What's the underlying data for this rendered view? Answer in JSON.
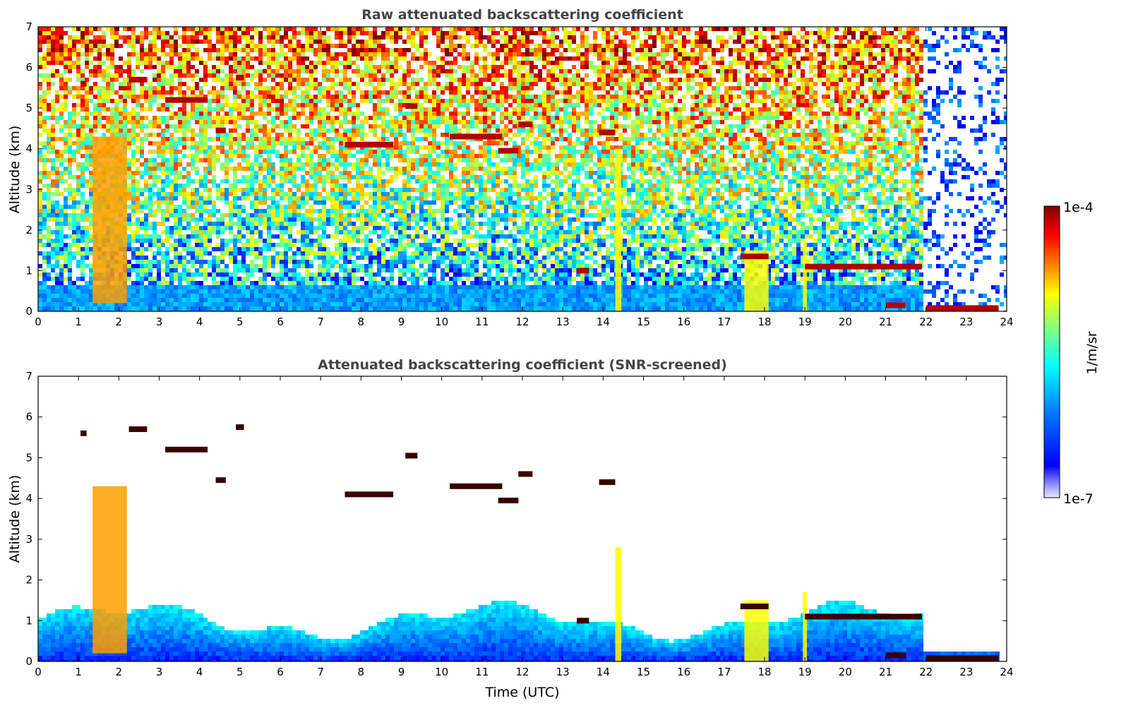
{
  "colors": {
    "jet": [
      "#00007f",
      "#0000ff",
      "#007fff",
      "#00ffff",
      "#7fff7f",
      "#ffff00",
      "#ff7f00",
      "#ff0000",
      "#7f0000"
    ],
    "background": "#ffffff"
  },
  "chart_data": [
    {
      "type": "heatmap",
      "id": "raw",
      "title": "Raw attenuated backscattering coefficient",
      "xlabel": "",
      "ylabel": "Altitude (km)",
      "xlim": [
        0,
        24
      ],
      "ylim": [
        0,
        7
      ],
      "x_ticks": [
        "0",
        "1",
        "2",
        "3",
        "4",
        "5",
        "6",
        "7",
        "8",
        "9",
        "10",
        "11",
        "12",
        "13",
        "14",
        "15",
        "16",
        "17",
        "18",
        "19",
        "20",
        "21",
        "22",
        "23",
        "24"
      ],
      "y_ticks": [
        "0",
        "1",
        "2",
        "3",
        "4",
        "5",
        "6",
        "7"
      ],
      "screened": false,
      "cloud_layers": [
        {
          "t0": 1.05,
          "t1": 1.2,
          "alt": 5.6
        },
        {
          "t0": 2.25,
          "t1": 2.7,
          "alt": 5.7
        },
        {
          "t0": 3.15,
          "t1": 4.2,
          "alt": 5.2
        },
        {
          "t0": 4.4,
          "t1": 4.65,
          "alt": 4.45
        },
        {
          "t0": 4.9,
          "t1": 5.1,
          "alt": 5.75
        },
        {
          "t0": 7.6,
          "t1": 8.8,
          "alt": 4.1
        },
        {
          "t0": 9.1,
          "t1": 9.4,
          "alt": 5.05
        },
        {
          "t0": 10.2,
          "t1": 11.5,
          "alt": 4.3
        },
        {
          "t0": 11.4,
          "t1": 11.9,
          "alt": 3.95
        },
        {
          "t0": 11.9,
          "t1": 12.25,
          "alt": 4.6
        },
        {
          "t0": 13.35,
          "t1": 13.65,
          "alt": 1.0
        },
        {
          "t0": 13.9,
          "t1": 14.3,
          "alt": 4.4
        },
        {
          "t0": 17.4,
          "t1": 18.1,
          "alt": 1.35
        },
        {
          "t0": 19.0,
          "t1": 21.9,
          "alt": 1.1
        },
        {
          "t0": 21.0,
          "t1": 21.5,
          "alt": 0.15
        },
        {
          "t0": 22.0,
          "t1": 23.8,
          "alt": 0.08
        }
      ],
      "plumes": [
        {
          "t0": 1.35,
          "t1": 2.2,
          "alt0": 0.2,
          "alt1": 4.3
        },
        {
          "t0": 14.3,
          "t1": 14.45,
          "alt0": 0.0,
          "alt1": 4.0
        },
        {
          "t0": 17.5,
          "t1": 18.1,
          "alt0": 0.0,
          "alt1": 1.5
        },
        {
          "t0": 18.95,
          "t1": 19.05,
          "alt0": 0.0,
          "alt1": 1.7
        }
      ]
    },
    {
      "type": "heatmap",
      "id": "screened",
      "title": "Attenuated backscattering coefficient (SNR-screened)",
      "xlabel": "Time (UTC)",
      "ylabel": "Altitude (km)",
      "xlim": [
        0,
        24
      ],
      "ylim": [
        0,
        7
      ],
      "x_ticks": [
        "0",
        "1",
        "2",
        "3",
        "4",
        "5",
        "6",
        "7",
        "8",
        "9",
        "10",
        "11",
        "12",
        "13",
        "14",
        "15",
        "16",
        "17",
        "18",
        "19",
        "20",
        "21",
        "22",
        "23",
        "24"
      ],
      "y_ticks": [
        "0",
        "1",
        "2",
        "3",
        "4",
        "5",
        "6",
        "7"
      ],
      "screened": true,
      "cloud_layers": [
        {
          "t0": 1.05,
          "t1": 1.2,
          "alt": 5.6
        },
        {
          "t0": 2.25,
          "t1": 2.7,
          "alt": 5.7
        },
        {
          "t0": 3.15,
          "t1": 4.2,
          "alt": 5.2
        },
        {
          "t0": 4.4,
          "t1": 4.65,
          "alt": 4.45
        },
        {
          "t0": 4.9,
          "t1": 5.1,
          "alt": 5.75
        },
        {
          "t0": 7.6,
          "t1": 8.8,
          "alt": 4.1
        },
        {
          "t0": 9.1,
          "t1": 9.4,
          "alt": 5.05
        },
        {
          "t0": 10.2,
          "t1": 11.5,
          "alt": 4.3
        },
        {
          "t0": 11.4,
          "t1": 11.9,
          "alt": 3.95
        },
        {
          "t0": 11.9,
          "t1": 12.25,
          "alt": 4.6
        },
        {
          "t0": 13.35,
          "t1": 13.65,
          "alt": 1.0
        },
        {
          "t0": 13.9,
          "t1": 14.3,
          "alt": 4.4
        },
        {
          "t0": 17.4,
          "t1": 18.1,
          "alt": 1.35
        },
        {
          "t0": 19.0,
          "t1": 21.9,
          "alt": 1.1
        },
        {
          "t0": 21.0,
          "t1": 21.5,
          "alt": 0.15
        },
        {
          "t0": 22.0,
          "t1": 23.8,
          "alt": 0.08
        }
      ],
      "plumes": [
        {
          "t0": 1.35,
          "t1": 2.2,
          "alt0": 0.2,
          "alt1": 4.3
        },
        {
          "t0": 14.3,
          "t1": 14.45,
          "alt0": 0.0,
          "alt1": 2.8
        },
        {
          "t0": 17.5,
          "t1": 18.1,
          "alt0": 0.0,
          "alt1": 1.5
        },
        {
          "t0": 18.95,
          "t1": 19.05,
          "alt0": 0.0,
          "alt1": 1.7
        }
      ]
    }
  ],
  "colorbar": {
    "label": "1/m/sr",
    "max_label": "1e-4",
    "min_label": "1e-7",
    "vmin": 1e-07,
    "vmax": 0.0001,
    "scale": "log",
    "colormap": "jet"
  }
}
